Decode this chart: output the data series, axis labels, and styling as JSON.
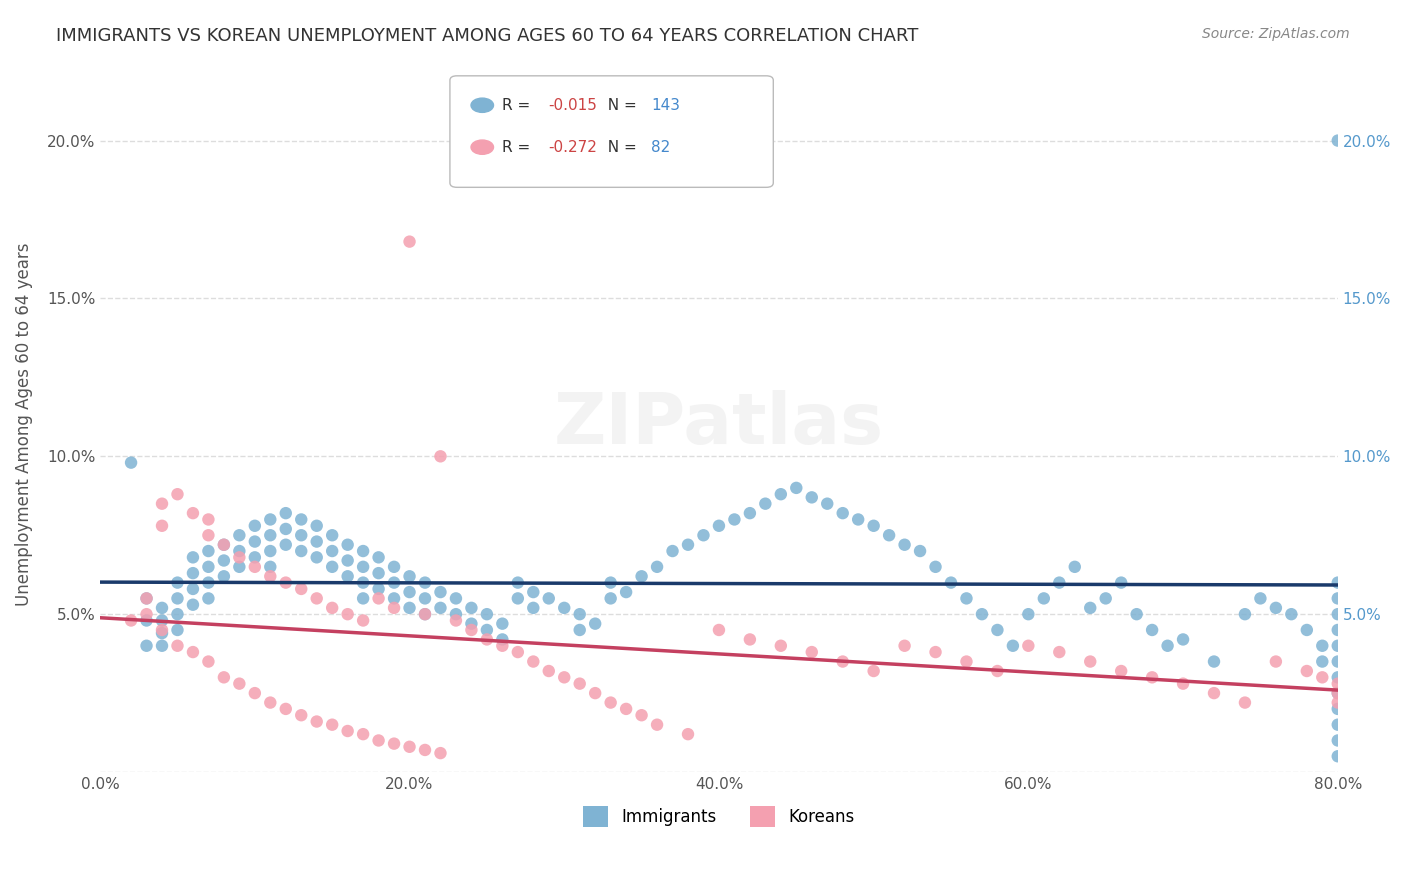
{
  "title": "IMMIGRANTS VS KOREAN UNEMPLOYMENT AMONG AGES 60 TO 64 YEARS CORRELATION CHART",
  "source": "Source: ZipAtlas.com",
  "ylabel": "Unemployment Among Ages 60 to 64 years",
  "xlabel": "",
  "watermark": "ZIPatlas",
  "immigrants_R": -0.015,
  "immigrants_N": 143,
  "koreans_R": -0.272,
  "koreans_N": 82,
  "xlim": [
    0.0,
    0.8
  ],
  "ylim": [
    0.0,
    0.22
  ],
  "xticks": [
    0.0,
    0.2,
    0.4,
    0.6,
    0.8
  ],
  "yticks": [
    0.0,
    0.05,
    0.1,
    0.15,
    0.2
  ],
  "ytick_labels": [
    "",
    "5.0%",
    "10.0%",
    "15.0%",
    "20.0%"
  ],
  "xtick_labels": [
    "0.0%",
    "20.0%",
    "40.0%",
    "60.0%",
    "80.0%"
  ],
  "immigrant_color": "#7fb3d3",
  "korean_color": "#f4a0b0",
  "trendline_immigrant_color": "#1a3a6b",
  "trendline_korean_color": "#c44060",
  "background_color": "#ffffff",
  "grid_color": "#dddddd",
  "title_color": "#333333",
  "right_ytick_color": "#5599cc",
  "immigrants_x": [
    0.02,
    0.03,
    0.03,
    0.03,
    0.04,
    0.04,
    0.04,
    0.04,
    0.05,
    0.05,
    0.05,
    0.05,
    0.06,
    0.06,
    0.06,
    0.06,
    0.07,
    0.07,
    0.07,
    0.07,
    0.08,
    0.08,
    0.08,
    0.09,
    0.09,
    0.09,
    0.1,
    0.1,
    0.1,
    0.11,
    0.11,
    0.11,
    0.11,
    0.12,
    0.12,
    0.12,
    0.13,
    0.13,
    0.13,
    0.14,
    0.14,
    0.14,
    0.15,
    0.15,
    0.15,
    0.16,
    0.16,
    0.16,
    0.17,
    0.17,
    0.17,
    0.17,
    0.18,
    0.18,
    0.18,
    0.19,
    0.19,
    0.19,
    0.2,
    0.2,
    0.2,
    0.21,
    0.21,
    0.21,
    0.22,
    0.22,
    0.23,
    0.23,
    0.24,
    0.24,
    0.25,
    0.25,
    0.26,
    0.26,
    0.27,
    0.27,
    0.28,
    0.28,
    0.29,
    0.3,
    0.31,
    0.31,
    0.32,
    0.33,
    0.33,
    0.34,
    0.35,
    0.36,
    0.37,
    0.38,
    0.39,
    0.4,
    0.41,
    0.42,
    0.43,
    0.44,
    0.45,
    0.46,
    0.47,
    0.48,
    0.49,
    0.5,
    0.51,
    0.52,
    0.53,
    0.54,
    0.55,
    0.56,
    0.57,
    0.58,
    0.59,
    0.6,
    0.61,
    0.62,
    0.63,
    0.64,
    0.65,
    0.66,
    0.67,
    0.68,
    0.69,
    0.7,
    0.72,
    0.74,
    0.75,
    0.76,
    0.77,
    0.78,
    0.79,
    0.79,
    0.8,
    0.8,
    0.8,
    0.8,
    0.8,
    0.8,
    0.8,
    0.8,
    0.8,
    0.8,
    0.8,
    0.8,
    0.8
  ],
  "immigrants_y": [
    0.098,
    0.055,
    0.048,
    0.04,
    0.052,
    0.048,
    0.044,
    0.04,
    0.06,
    0.055,
    0.05,
    0.045,
    0.068,
    0.063,
    0.058,
    0.053,
    0.07,
    0.065,
    0.06,
    0.055,
    0.072,
    0.067,
    0.062,
    0.075,
    0.07,
    0.065,
    0.078,
    0.073,
    0.068,
    0.08,
    0.075,
    0.07,
    0.065,
    0.082,
    0.077,
    0.072,
    0.08,
    0.075,
    0.07,
    0.078,
    0.073,
    0.068,
    0.075,
    0.07,
    0.065,
    0.072,
    0.067,
    0.062,
    0.07,
    0.065,
    0.06,
    0.055,
    0.068,
    0.063,
    0.058,
    0.065,
    0.06,
    0.055,
    0.062,
    0.057,
    0.052,
    0.06,
    0.055,
    0.05,
    0.057,
    0.052,
    0.055,
    0.05,
    0.052,
    0.047,
    0.05,
    0.045,
    0.047,
    0.042,
    0.06,
    0.055,
    0.057,
    0.052,
    0.055,
    0.052,
    0.05,
    0.045,
    0.047,
    0.06,
    0.055,
    0.057,
    0.062,
    0.065,
    0.07,
    0.072,
    0.075,
    0.078,
    0.08,
    0.082,
    0.085,
    0.088,
    0.09,
    0.087,
    0.085,
    0.082,
    0.08,
    0.078,
    0.075,
    0.072,
    0.07,
    0.065,
    0.06,
    0.055,
    0.05,
    0.045,
    0.04,
    0.05,
    0.055,
    0.06,
    0.065,
    0.052,
    0.055,
    0.06,
    0.05,
    0.045,
    0.04,
    0.042,
    0.035,
    0.05,
    0.055,
    0.052,
    0.05,
    0.045,
    0.04,
    0.035,
    0.06,
    0.055,
    0.05,
    0.045,
    0.04,
    0.035,
    0.03,
    0.025,
    0.02,
    0.015,
    0.01,
    0.005,
    0.2
  ],
  "koreans_x": [
    0.02,
    0.03,
    0.03,
    0.04,
    0.04,
    0.04,
    0.05,
    0.05,
    0.06,
    0.06,
    0.07,
    0.07,
    0.07,
    0.08,
    0.08,
    0.09,
    0.09,
    0.1,
    0.1,
    0.11,
    0.11,
    0.12,
    0.12,
    0.13,
    0.13,
    0.14,
    0.14,
    0.15,
    0.15,
    0.16,
    0.16,
    0.17,
    0.17,
    0.18,
    0.18,
    0.19,
    0.19,
    0.2,
    0.2,
    0.21,
    0.21,
    0.22,
    0.22,
    0.23,
    0.24,
    0.25,
    0.26,
    0.27,
    0.28,
    0.29,
    0.3,
    0.31,
    0.32,
    0.33,
    0.34,
    0.35,
    0.36,
    0.38,
    0.4,
    0.42,
    0.44,
    0.46,
    0.48,
    0.5,
    0.52,
    0.54,
    0.56,
    0.58,
    0.6,
    0.62,
    0.64,
    0.66,
    0.68,
    0.7,
    0.72,
    0.74,
    0.76,
    0.78,
    0.79,
    0.8,
    0.8,
    0.8
  ],
  "koreans_y": [
    0.048,
    0.055,
    0.05,
    0.085,
    0.078,
    0.045,
    0.088,
    0.04,
    0.082,
    0.038,
    0.08,
    0.075,
    0.035,
    0.072,
    0.03,
    0.068,
    0.028,
    0.065,
    0.025,
    0.062,
    0.022,
    0.06,
    0.02,
    0.058,
    0.018,
    0.055,
    0.016,
    0.052,
    0.015,
    0.05,
    0.013,
    0.048,
    0.012,
    0.055,
    0.01,
    0.052,
    0.009,
    0.168,
    0.008,
    0.05,
    0.007,
    0.1,
    0.006,
    0.048,
    0.045,
    0.042,
    0.04,
    0.038,
    0.035,
    0.032,
    0.03,
    0.028,
    0.025,
    0.022,
    0.02,
    0.018,
    0.015,
    0.012,
    0.045,
    0.042,
    0.04,
    0.038,
    0.035,
    0.032,
    0.04,
    0.038,
    0.035,
    0.032,
    0.04,
    0.038,
    0.035,
    0.032,
    0.03,
    0.028,
    0.025,
    0.022,
    0.035,
    0.032,
    0.03,
    0.028,
    0.025,
    0.022
  ]
}
